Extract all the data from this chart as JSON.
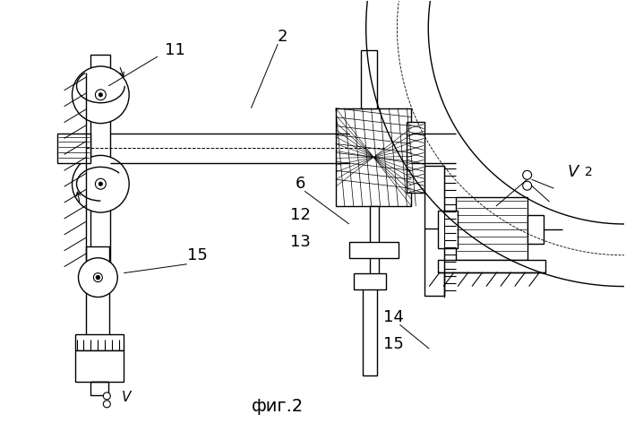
{
  "bg_color": "#ffffff",
  "fig_caption": "фиг.2",
  "lw": 1.0
}
